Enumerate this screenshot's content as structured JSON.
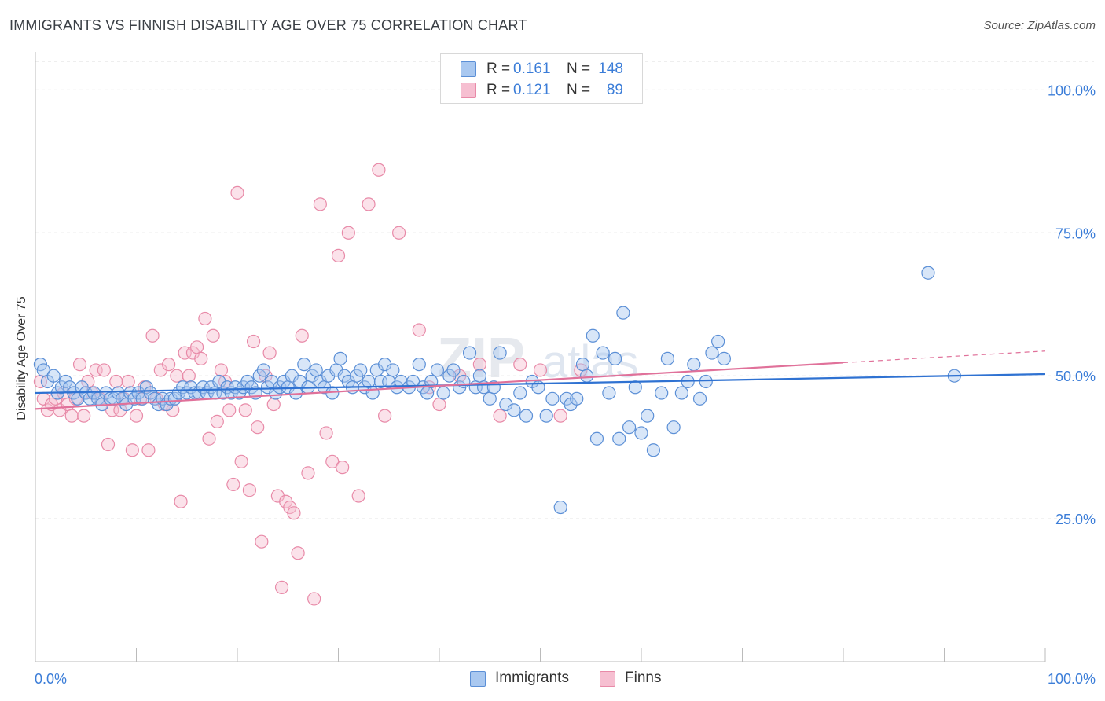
{
  "title": "IMMIGRANTS VS FINNISH DISABILITY AGE OVER 75 CORRELATION CHART",
  "source": "Source: ZipAtlas.com",
  "watermark": "ZIPatlas",
  "legend": {
    "rows": [
      {
        "r_label": "R =",
        "r_value": "0.161",
        "n_label": "N =",
        "n_value": "148"
      },
      {
        "r_label": "R =",
        "r_value": "0.121",
        "n_label": "N =",
        "n_value": "89"
      }
    ]
  },
  "bottom_legend": [
    "Immigrants",
    "Finns"
  ],
  "colors": {
    "immigrants_fill": "#a9c8f0",
    "immigrants_stroke": "#5b8fd6",
    "immigrants_line": "#2f72d2",
    "finns_fill": "#f6bfd1",
    "finns_stroke": "#e88aa8",
    "finns_line": "#e0719a",
    "value_text": "#3b7dd8",
    "grid": "#dcdcdc"
  },
  "chart_data": {
    "type": "scatter",
    "title": "IMMIGRANTS VS FINNISH DISABILITY AGE OVER 75 CORRELATION CHART",
    "xlabel": "",
    "ylabel": "Disability Age Over 75",
    "xlim": [
      0,
      100
    ],
    "ylim": [
      0,
      105
    ],
    "x_tick_labels": [
      "0.0%",
      "100.0%"
    ],
    "y_tick_labels": [
      "25.0%",
      "50.0%",
      "75.0%",
      "100.0%"
    ],
    "y_ticks": [
      25,
      50,
      75,
      100
    ],
    "grid": true,
    "legend_position": "top-center",
    "series": [
      {
        "name": "Immigrants",
        "R": 0.161,
        "N": 148,
        "trend": {
          "x": [
            0,
            100
          ],
          "y": [
            47.0,
            50.3
          ]
        },
        "points": [
          [
            0.5,
            52
          ],
          [
            0.8,
            51
          ],
          [
            1.2,
            49
          ],
          [
            1.8,
            50
          ],
          [
            2.2,
            47
          ],
          [
            2.6,
            48
          ],
          [
            3.0,
            49
          ],
          [
            3.4,
            48
          ],
          [
            3.8,
            47
          ],
          [
            4.2,
            46
          ],
          [
            4.6,
            48
          ],
          [
            5.0,
            47
          ],
          [
            5.4,
            46
          ],
          [
            5.8,
            47
          ],
          [
            6.2,
            46
          ],
          [
            6.6,
            45
          ],
          [
            7.0,
            47
          ],
          [
            7.4,
            46
          ],
          [
            7.8,
            46
          ],
          [
            8.2,
            47
          ],
          [
            8.6,
            46
          ],
          [
            9.0,
            45
          ],
          [
            9.4,
            47
          ],
          [
            9.8,
            46
          ],
          [
            10.2,
            47
          ],
          [
            10.6,
            46
          ],
          [
            11.0,
            48
          ],
          [
            11.4,
            47
          ],
          [
            11.8,
            46
          ],
          [
            12.2,
            45
          ],
          [
            12.6,
            46
          ],
          [
            13.0,
            45
          ],
          [
            13.4,
            46
          ],
          [
            13.8,
            46
          ],
          [
            14.2,
            47
          ],
          [
            14.6,
            48
          ],
          [
            15.0,
            47
          ],
          [
            15.4,
            48
          ],
          [
            15.8,
            47
          ],
          [
            16.2,
            47
          ],
          [
            16.6,
            48
          ],
          [
            17.0,
            47
          ],
          [
            17.4,
            48
          ],
          [
            17.8,
            47
          ],
          [
            18.2,
            49
          ],
          [
            18.6,
            47
          ],
          [
            19.0,
            48
          ],
          [
            19.4,
            47
          ],
          [
            19.8,
            48
          ],
          [
            20.2,
            47
          ],
          [
            20.6,
            48
          ],
          [
            21.0,
            49
          ],
          [
            21.4,
            48
          ],
          [
            21.8,
            47
          ],
          [
            22.2,
            50
          ],
          [
            22.6,
            51
          ],
          [
            23.0,
            48
          ],
          [
            23.4,
            49
          ],
          [
            23.8,
            47
          ],
          [
            24.2,
            48
          ],
          [
            24.6,
            49
          ],
          [
            25.0,
            48
          ],
          [
            25.4,
            50
          ],
          [
            25.8,
            47
          ],
          [
            26.2,
            49
          ],
          [
            26.6,
            52
          ],
          [
            27.0,
            48
          ],
          [
            27.4,
            50
          ],
          [
            27.8,
            51
          ],
          [
            28.2,
            49
          ],
          [
            28.6,
            48
          ],
          [
            29.0,
            50
          ],
          [
            29.4,
            47
          ],
          [
            29.8,
            51
          ],
          [
            30.2,
            53
          ],
          [
            30.6,
            50
          ],
          [
            31.0,
            49
          ],
          [
            31.4,
            48
          ],
          [
            31.8,
            50
          ],
          [
            32.2,
            51
          ],
          [
            32.6,
            48
          ],
          [
            33.0,
            49
          ],
          [
            33.4,
            47
          ],
          [
            33.8,
            51
          ],
          [
            34.2,
            49
          ],
          [
            34.6,
            52
          ],
          [
            35.0,
            49
          ],
          [
            35.4,
            51
          ],
          [
            35.8,
            48
          ],
          [
            36.2,
            49
          ],
          [
            37.0,
            48
          ],
          [
            37.4,
            49
          ],
          [
            38.0,
            52
          ],
          [
            38.4,
            48
          ],
          [
            38.8,
            47
          ],
          [
            39.2,
            49
          ],
          [
            39.8,
            51
          ],
          [
            40.4,
            47
          ],
          [
            41.0,
            50
          ],
          [
            41.4,
            51
          ],
          [
            42.0,
            48
          ],
          [
            42.4,
            49
          ],
          [
            43.0,
            54
          ],
          [
            43.6,
            48
          ],
          [
            44.0,
            50
          ],
          [
            44.4,
            48
          ],
          [
            45.0,
            46
          ],
          [
            45.4,
            48
          ],
          [
            46.0,
            54
          ],
          [
            46.6,
            45
          ],
          [
            47.4,
            44
          ],
          [
            48.0,
            47
          ],
          [
            48.6,
            43
          ],
          [
            49.2,
            49
          ],
          [
            49.8,
            48
          ],
          [
            50.6,
            43
          ],
          [
            51.2,
            46
          ],
          [
            52.0,
            27
          ],
          [
            52.6,
            46
          ],
          [
            53.0,
            45
          ],
          [
            53.6,
            46
          ],
          [
            54.2,
            52
          ],
          [
            54.6,
            50
          ],
          [
            55.2,
            57
          ],
          [
            55.6,
            39
          ],
          [
            56.2,
            54
          ],
          [
            56.8,
            47
          ],
          [
            57.4,
            53
          ],
          [
            57.8,
            39
          ],
          [
            58.2,
            61
          ],
          [
            58.8,
            41
          ],
          [
            59.4,
            48
          ],
          [
            60.0,
            40
          ],
          [
            60.6,
            43
          ],
          [
            61.2,
            37
          ],
          [
            62.0,
            47
          ],
          [
            62.6,
            53
          ],
          [
            63.2,
            41
          ],
          [
            64.0,
            47
          ],
          [
            64.6,
            49
          ],
          [
            65.2,
            52
          ],
          [
            65.8,
            46
          ],
          [
            66.4,
            49
          ],
          [
            67.0,
            54
          ],
          [
            67.6,
            56
          ],
          [
            68.2,
            53
          ],
          [
            88.4,
            68
          ],
          [
            91.0,
            50
          ]
        ]
      },
      {
        "name": "Finns",
        "R": 0.121,
        "N": 89,
        "trend": {
          "x": [
            0,
            80
          ],
          "y": [
            44.2,
            52.3
          ]
        },
        "points": [
          [
            0.5,
            49
          ],
          [
            0.8,
            46
          ],
          [
            1.2,
            44
          ],
          [
            1.6,
            45
          ],
          [
            2.0,
            46
          ],
          [
            2.4,
            44
          ],
          [
            2.8,
            47
          ],
          [
            3.2,
            45
          ],
          [
            3.6,
            43
          ],
          [
            4.0,
            46
          ],
          [
            4.4,
            52
          ],
          [
            4.8,
            43
          ],
          [
            5.2,
            49
          ],
          [
            5.6,
            47
          ],
          [
            6.0,
            51
          ],
          [
            6.4,
            46
          ],
          [
            6.8,
            51
          ],
          [
            7.2,
            38
          ],
          [
            7.6,
            44
          ],
          [
            8.0,
            49
          ],
          [
            8.4,
            44
          ],
          [
            8.8,
            46
          ],
          [
            9.2,
            49
          ],
          [
            9.6,
            37
          ],
          [
            10.0,
            43
          ],
          [
            10.4,
            46
          ],
          [
            10.8,
            48
          ],
          [
            11.2,
            37
          ],
          [
            11.6,
            57
          ],
          [
            12.0,
            46
          ],
          [
            12.4,
            51
          ],
          [
            12.8,
            45
          ],
          [
            13.2,
            52
          ],
          [
            13.6,
            44
          ],
          [
            14.0,
            50
          ],
          [
            14.4,
            28
          ],
          [
            14.8,
            54
          ],
          [
            15.2,
            50
          ],
          [
            15.6,
            54
          ],
          [
            16.0,
            55
          ],
          [
            16.4,
            53
          ],
          [
            16.8,
            60
          ],
          [
            17.2,
            39
          ],
          [
            17.6,
            57
          ],
          [
            18.0,
            42
          ],
          [
            18.4,
            51
          ],
          [
            18.8,
            49
          ],
          [
            19.2,
            44
          ],
          [
            19.6,
            31
          ],
          [
            20.0,
            82
          ],
          [
            20.4,
            35
          ],
          [
            20.8,
            44
          ],
          [
            21.2,
            30
          ],
          [
            21.6,
            56
          ],
          [
            22.0,
            41
          ],
          [
            22.4,
            21
          ],
          [
            22.8,
            50
          ],
          [
            23.2,
            54
          ],
          [
            23.6,
            45
          ],
          [
            24.0,
            29
          ],
          [
            24.4,
            13
          ],
          [
            24.8,
            28
          ],
          [
            25.2,
            27
          ],
          [
            25.6,
            26
          ],
          [
            26.0,
            19
          ],
          [
            26.4,
            57
          ],
          [
            27.0,
            33
          ],
          [
            27.6,
            11
          ],
          [
            28.2,
            80
          ],
          [
            28.8,
            40
          ],
          [
            29.4,
            35
          ],
          [
            30.0,
            71
          ],
          [
            30.4,
            34
          ],
          [
            31.0,
            75
          ],
          [
            32.0,
            29
          ],
          [
            33.0,
            80
          ],
          [
            34.0,
            86
          ],
          [
            34.6,
            43
          ],
          [
            36.0,
            75
          ],
          [
            38.0,
            58
          ],
          [
            39.0,
            48
          ],
          [
            40.0,
            45
          ],
          [
            42.0,
            50
          ],
          [
            44.0,
            52
          ],
          [
            46.0,
            43
          ],
          [
            48.0,
            52
          ],
          [
            50.0,
            51
          ],
          [
            52.0,
            43
          ],
          [
            54.0,
            51
          ]
        ]
      }
    ]
  }
}
